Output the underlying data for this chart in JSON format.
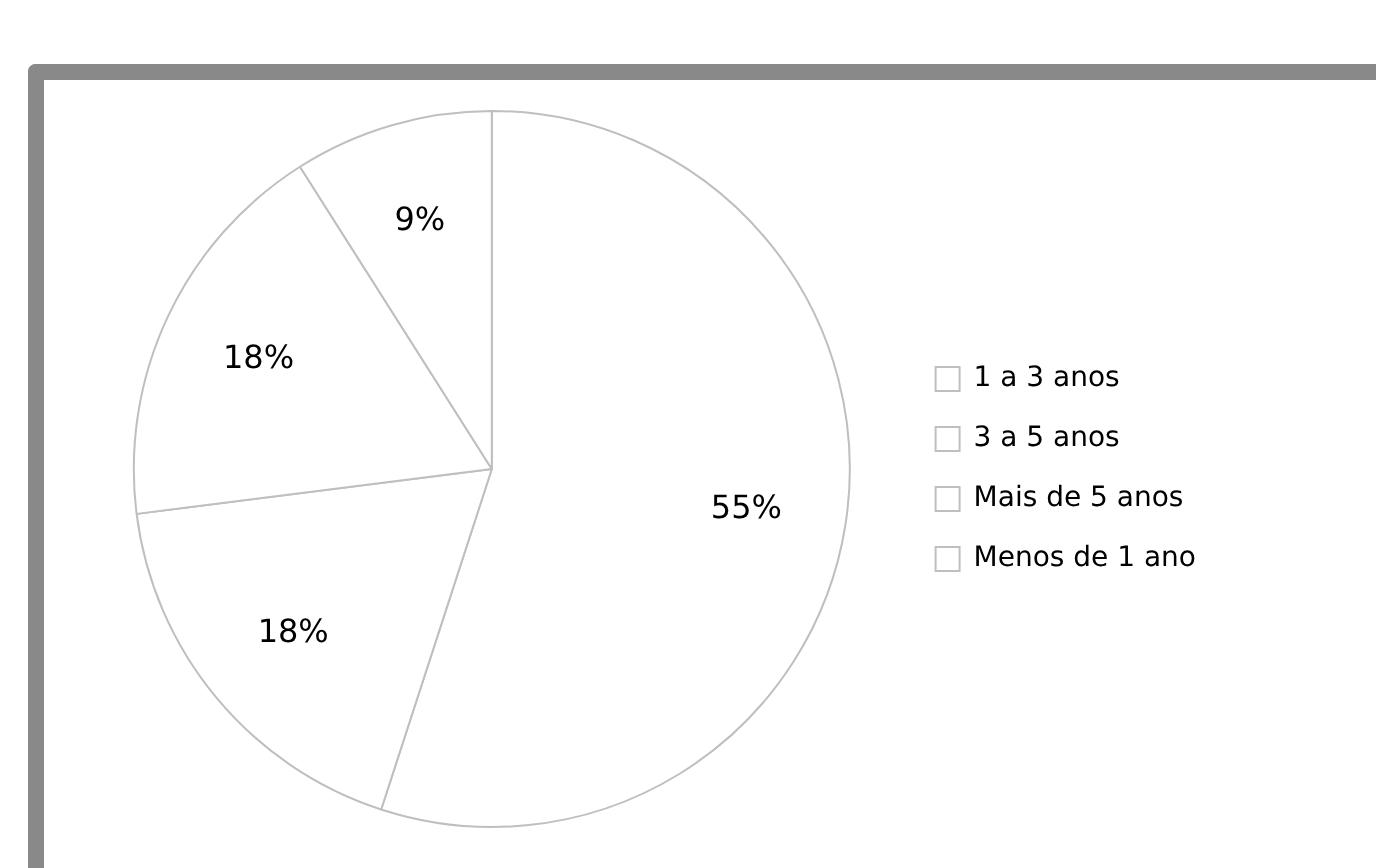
{
  "chart_data": {
    "type": "pie",
    "categories": [
      "1 a 3 anos",
      "3 a 5 anos",
      "Mais de 5 anos",
      "Menos de 1 ano"
    ],
    "values": [
      55,
      18,
      18,
      9
    ],
    "colors": [
      "#ffffff",
      "#ffffff",
      "#ffffff",
      "#ffffff"
    ],
    "value_labels": [
      "55%",
      "18%",
      "18%",
      "9%"
    ],
    "legend": "right"
  }
}
